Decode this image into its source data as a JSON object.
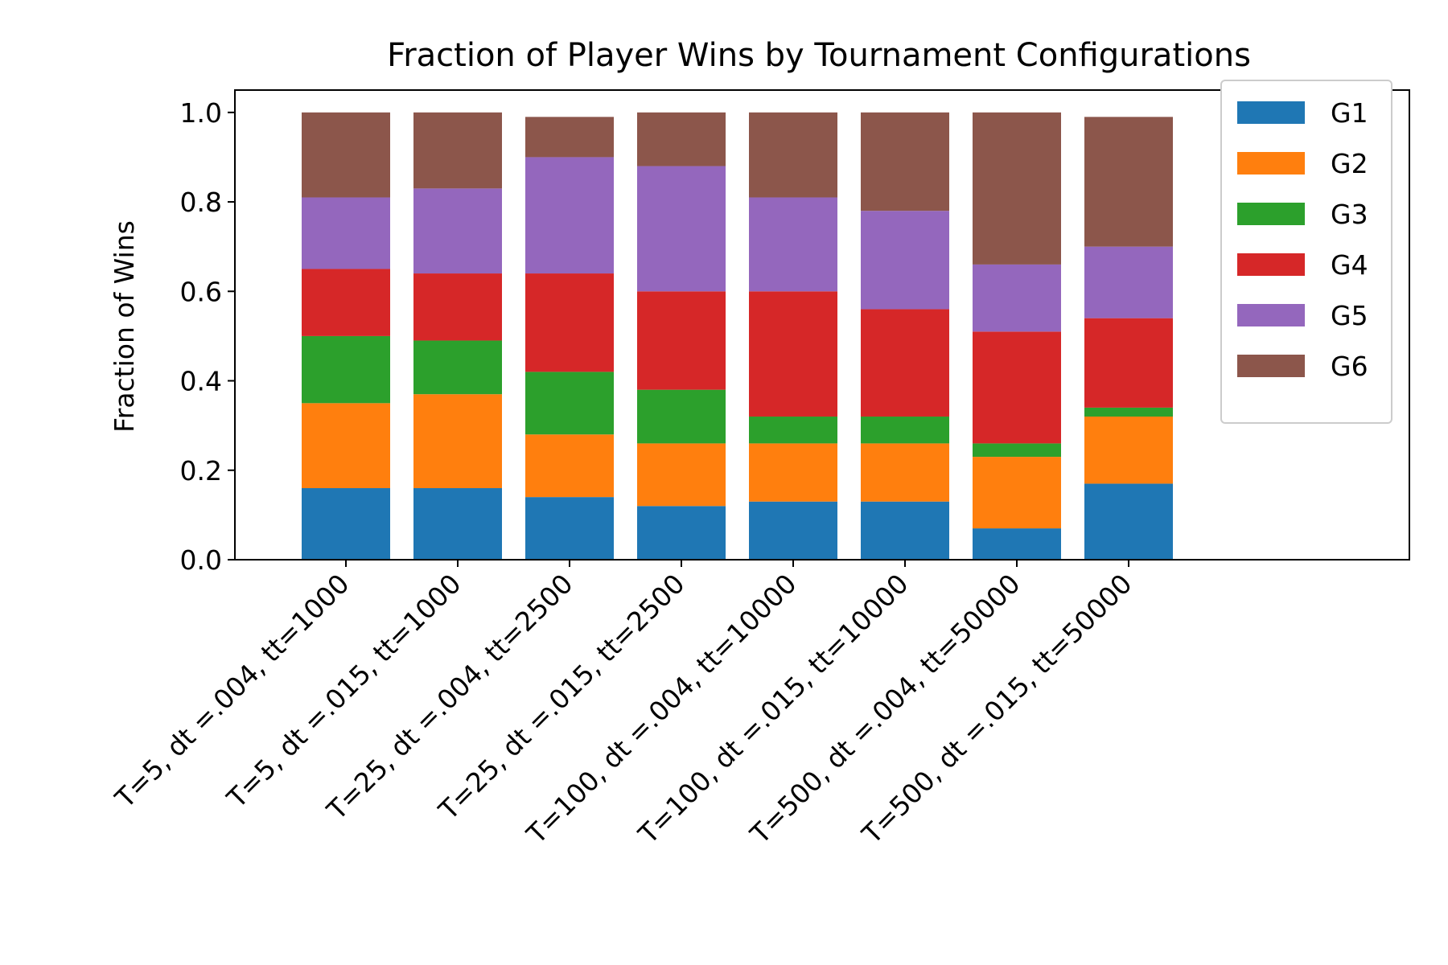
{
  "chart_data": {
    "type": "bar",
    "stacked": true,
    "title": "Fraction of Player Wins by Tournament Configurations",
    "xlabel": "",
    "ylabel": "Fraction of Wins",
    "ylim": [
      0,
      1.05
    ],
    "y_ticks": [
      "0.0",
      "0.2",
      "0.4",
      "0.6",
      "0.8",
      "1.0"
    ],
    "y_tick_values": [
      0,
      0.2,
      0.4,
      0.6,
      0.8,
      1.0
    ],
    "grid": false,
    "legend_position": "top-right",
    "categories": [
      "T=5, dt =.004, tt=1000",
      "T=5, dt =.015, tt=1000",
      "T=25, dt =.004, tt=2500",
      "T=25, dt =.015, tt=2500",
      "T=100, dt =.004, tt=10000",
      "T=100, dt =.015, tt=10000",
      "T=500, dt =.004, tt=50000",
      "T=500, dt =.015, tt=50000"
    ],
    "series": [
      {
        "name": "G1",
        "color": "#1f77b4",
        "values": [
          0.16,
          0.16,
          0.14,
          0.12,
          0.13,
          0.13,
          0.07,
          0.17
        ]
      },
      {
        "name": "G2",
        "color": "#ff7f0e",
        "values": [
          0.19,
          0.21,
          0.14,
          0.14,
          0.13,
          0.13,
          0.16,
          0.15
        ]
      },
      {
        "name": "G3",
        "color": "#2ca02c",
        "values": [
          0.15,
          0.12,
          0.14,
          0.12,
          0.06,
          0.06,
          0.03,
          0.02
        ]
      },
      {
        "name": "G4",
        "color": "#d62728",
        "values": [
          0.15,
          0.15,
          0.22,
          0.22,
          0.28,
          0.24,
          0.25,
          0.2
        ]
      },
      {
        "name": "G5",
        "color": "#9467bd",
        "values": [
          0.16,
          0.19,
          0.26,
          0.28,
          0.21,
          0.22,
          0.15,
          0.16
        ]
      },
      {
        "name": "G6",
        "color": "#8c564b",
        "values": [
          0.19,
          0.17,
          0.09,
          0.12,
          0.19,
          0.22,
          0.34,
          0.29
        ]
      }
    ]
  }
}
